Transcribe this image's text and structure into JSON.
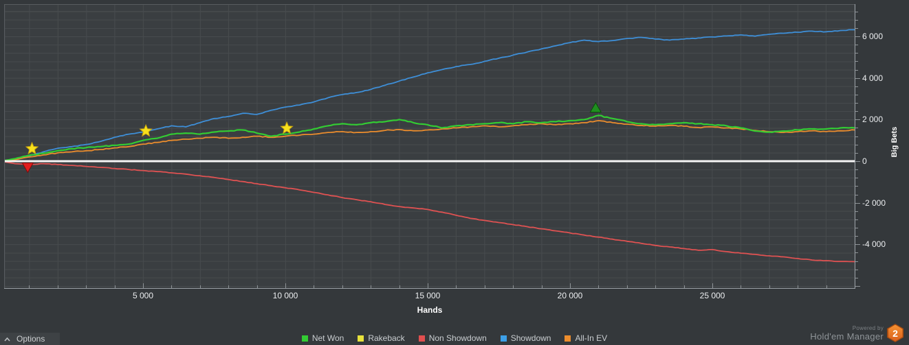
{
  "axes": {
    "x_title": "Hands",
    "y_title": "Big Bets",
    "x_major_ticks": [
      {
        "v": 5000,
        "label": "5 000"
      },
      {
        "v": 10000,
        "label": "10 000"
      },
      {
        "v": 15000,
        "label": "15 000"
      },
      {
        "v": 20000,
        "label": "20 000"
      },
      {
        "v": 25000,
        "label": "25 000"
      }
    ],
    "x_minor_step": 1000,
    "x_range": [
      0,
      30000
    ],
    "y_major_ticks": [
      {
        "v": 6000,
        "label": "6 000"
      },
      {
        "v": 4000,
        "label": "4 000"
      },
      {
        "v": 2000,
        "label": "2 000"
      },
      {
        "v": 0,
        "label": "0"
      },
      {
        "v": -2000,
        "label": "-2 000"
      },
      {
        "v": -4000,
        "label": "-4 000"
      }
    ],
    "y_minor_step": 400,
    "y_range": [
      -6200,
      7500
    ]
  },
  "chart_data": {
    "type": "line",
    "xlabel": "Hands",
    "ylabel": "Big Bets",
    "x_start": 0,
    "x_step": 500,
    "grid": true,
    "zero_line": {
      "value": 0,
      "color": "#f5f5f5"
    },
    "series": [
      {
        "id": "non-showdown",
        "name": "Non Showdown",
        "color": "#e05252",
        "noise": 25,
        "width": 1.8,
        "values": [
          0,
          -120,
          -160,
          -120,
          -160,
          -200,
          -250,
          -300,
          -350,
          -400,
          -450,
          -500,
          -560,
          -620,
          -700,
          -780,
          -880,
          -980,
          -1080,
          -1180,
          -1280,
          -1380,
          -1500,
          -1620,
          -1750,
          -1850,
          -1950,
          -2080,
          -2180,
          -2250,
          -2320,
          -2450,
          -2600,
          -2750,
          -2850,
          -2950,
          -3050,
          -3150,
          -3250,
          -3350,
          -3450,
          -3550,
          -3650,
          -3750,
          -3850,
          -3950,
          -4050,
          -4120,
          -4200,
          -4280,
          -4250,
          -4350,
          -4420,
          -4480,
          -4550,
          -4600,
          -4680,
          -4750,
          -4780,
          -4820,
          -4830
        ]
      },
      {
        "id": "showdown",
        "name": "Showdown",
        "color": "#3e8fd8",
        "noise": 30,
        "width": 1.8,
        "values": [
          0,
          100,
          250,
          450,
          620,
          700,
          800,
          950,
          1150,
          1300,
          1400,
          1550,
          1700,
          1650,
          1850,
          2050,
          2150,
          2300,
          2250,
          2450,
          2600,
          2700,
          2850,
          3050,
          3200,
          3300,
          3450,
          3650,
          3850,
          4050,
          4250,
          4400,
          4550,
          4650,
          4800,
          4950,
          5100,
          5250,
          5400,
          5550,
          5700,
          5820,
          5750,
          5800,
          5900,
          5950,
          5870,
          5820,
          5870,
          5920,
          5970,
          6020,
          6070,
          6010,
          6100,
          6150,
          6200,
          6250,
          6220,
          6280,
          6320
        ]
      },
      {
        "id": "all-in-ev",
        "name": "All-In EV",
        "color": "#ec8d2d",
        "noise": 40,
        "width": 1.8,
        "values": [
          0,
          80,
          200,
          300,
          400,
          450,
          500,
          560,
          640,
          700,
          820,
          900,
          1000,
          1060,
          1100,
          1150,
          1100,
          1150,
          1200,
          1150,
          1200,
          1250,
          1300,
          1380,
          1420,
          1380,
          1420,
          1480,
          1520,
          1460,
          1500,
          1550,
          1600,
          1650,
          1700,
          1650,
          1700,
          1750,
          1800,
          1750,
          1800,
          1850,
          1950,
          1850,
          1780,
          1720,
          1680,
          1720,
          1680,
          1620,
          1650,
          1600,
          1550,
          1480,
          1420,
          1380,
          1420,
          1460,
          1420,
          1460,
          1500
        ]
      },
      {
        "id": "net-won",
        "name": "Net Won",
        "color": "#33cc33",
        "noise": 45,
        "width": 2.2,
        "values": [
          0,
          120,
          280,
          380,
          500,
          600,
          650,
          700,
          760,
          820,
          1000,
          1100,
          1300,
          1350,
          1300,
          1400,
          1450,
          1500,
          1350,
          1200,
          1300,
          1400,
          1550,
          1700,
          1800,
          1750,
          1850,
          1900,
          2000,
          1850,
          1750,
          1600,
          1700,
          1750,
          1800,
          1850,
          1800,
          1900,
          1850,
          1900,
          1950,
          2000,
          2200,
          2050,
          1900,
          1800,
          1750,
          1800,
          1850,
          1800,
          1750,
          1700,
          1600,
          1450,
          1400,
          1450,
          1500,
          1550,
          1550,
          1600,
          1600
        ]
      }
    ],
    "markers": [
      {
        "type": "star",
        "hands": 1100,
        "value": 600,
        "fill": "#f7e11c",
        "stroke": "#c9a50d"
      },
      {
        "type": "star",
        "hands": 5100,
        "value": 1450,
        "fill": "#f7e11c",
        "stroke": "#c9a50d"
      },
      {
        "type": "star",
        "hands": 10050,
        "value": 1580,
        "fill": "#f7e11c",
        "stroke": "#c9a50d"
      },
      {
        "type": "triangle-down",
        "hands": 950,
        "value": -280,
        "fill": "#e01d1d",
        "stroke": "#7a0c0c"
      },
      {
        "type": "triangle-up",
        "hands": 20900,
        "value": 2550,
        "fill": "#1f8f1f",
        "stroke": "#0b4d0b"
      }
    ]
  },
  "legend": {
    "items": [
      {
        "label": "Net Won",
        "color": "#33cc33"
      },
      {
        "label": "Rakeback",
        "color": "#e8e23c"
      },
      {
        "label": "Non Showdown",
        "color": "#e14f4f"
      },
      {
        "label": "Showdown",
        "color": "#3da0e8"
      },
      {
        "label": "All-In EV",
        "color": "#ec8d2d"
      }
    ]
  },
  "options_button": {
    "label": "Options"
  },
  "branding": {
    "powered_by": "Powered by",
    "name": "Hold'em Manager",
    "badge": "2"
  }
}
